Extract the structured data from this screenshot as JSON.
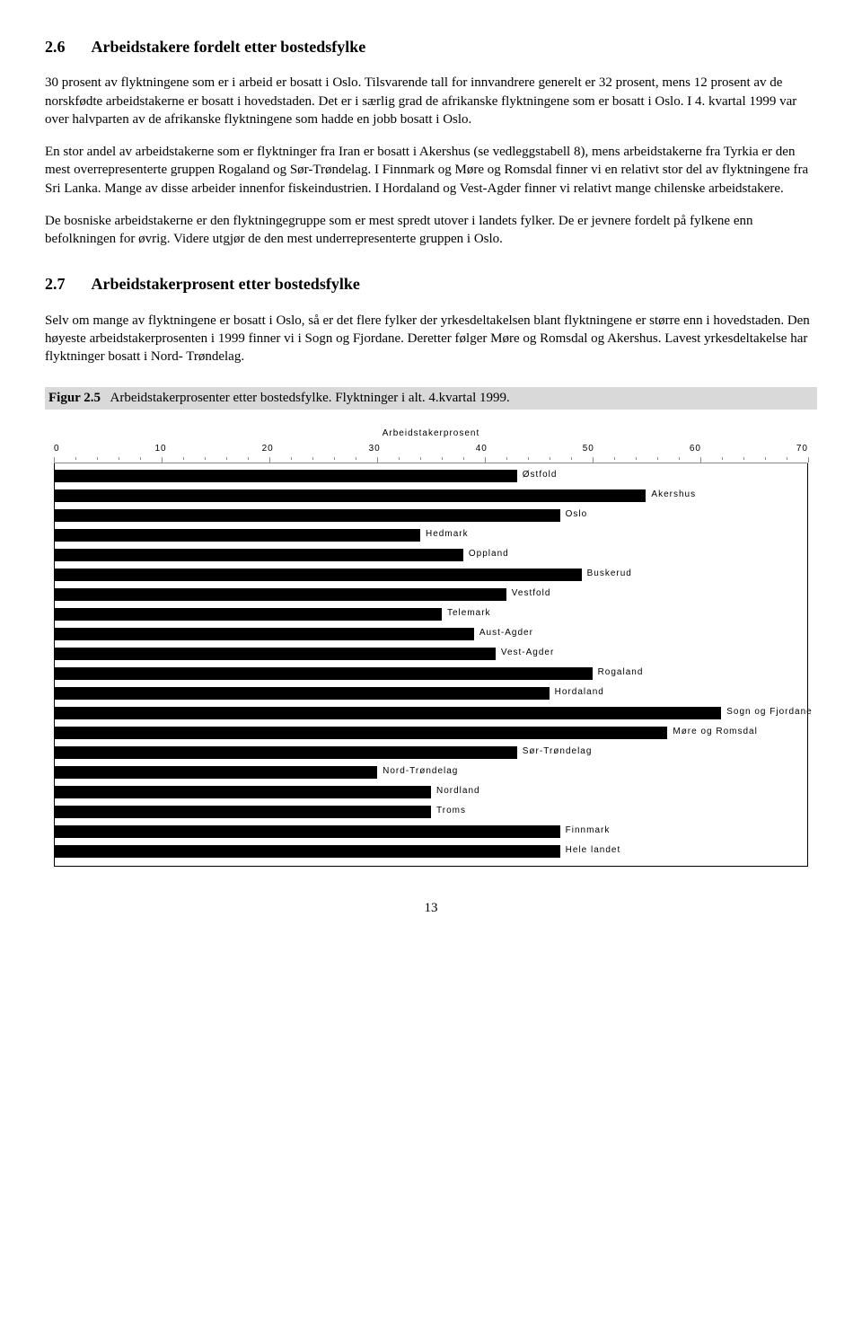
{
  "section26": {
    "num": "2.6",
    "title": "Arbeidstakere fordelt etter bostedsfylke",
    "p1": "30 prosent av flyktningene som er i arbeid er bosatt i Oslo. Tilsvarende tall for innvandrere generelt er 32 prosent, mens 12 prosent av de norskfødte arbeidstakerne er bosatt i hovedstaden. Det er i særlig grad de afrikanske flyktningene som er bosatt i Oslo. I  4. kvartal 1999 var over halvparten av de afrikanske flyktningene som hadde en jobb bosatt i Oslo.",
    "p2": "En stor andel av arbeidstakerne som er flyktninger fra Iran er bosatt i Akershus (se vedleggstabell 8), mens arbeidstakerne fra Tyrkia er den mest overrepresenterte gruppen Rogaland og Sør-Trøndelag. I Finnmark og Møre og Romsdal finner vi en relativt stor del av flyktningene fra Sri Lanka. Mange av disse arbeider innenfor fiskeindustrien. I Hordaland og Vest-Agder finner vi relativt mange chilenske arbeidstakere.",
    "p3": "De bosniske arbeidstakerne er den flyktningegruppe som er  mest spredt utover i landets fylker. De er jevnere fordelt på fylkene enn befolkningen for øvrig. Videre utgjør de den mest underrepresenterte gruppen i Oslo."
  },
  "section27": {
    "num": "2.7",
    "title": "Arbeidstakerprosent etter bostedsfylke",
    "p1": "Selv om mange av flyktningene er bosatt i Oslo, så er det flere fylker der yrkesdeltakelsen blant flyktningene er større enn i hovedstaden. Den høyeste arbeidstakerprosenten i 1999 finner vi i Sogn og Fjordane. Deretter følger Møre og Romsdal og Akershus. Lavest yrkesdeltakelse har flyktninger bosatt i Nord- Trøndelag."
  },
  "figure": {
    "prefix": "Figur 2.5",
    "caption": "Arbeidstakerprosenter etter bostedsfylke. Flyktninger i alt. 4.kvartal 1999."
  },
  "chart": {
    "type": "bar-horizontal",
    "title": "Arbeidstakerprosent",
    "xmin": 0,
    "xmax": 70,
    "xtick_step": 10,
    "xticks": [
      "0",
      "10",
      "20",
      "30",
      "40",
      "50",
      "60",
      "70"
    ],
    "bar_color": "#000000",
    "background_color": "#ffffff",
    "label_fontsize": 10,
    "bars": [
      {
        "label": "Østfold",
        "value": 43
      },
      {
        "label": "Akershus",
        "value": 55
      },
      {
        "label": "Oslo",
        "value": 47
      },
      {
        "label": "Hedmark",
        "value": 34
      },
      {
        "label": "Oppland",
        "value": 38
      },
      {
        "label": "Buskerud",
        "value": 49
      },
      {
        "label": "Vestfold",
        "value": 42
      },
      {
        "label": "Telemark",
        "value": 36
      },
      {
        "label": "Aust-Agder",
        "value": 39
      },
      {
        "label": "Vest-Agder",
        "value": 41
      },
      {
        "label": "Rogaland",
        "value": 50
      },
      {
        "label": "Hordaland",
        "value": 46
      },
      {
        "label": "Sogn og Fjordane",
        "value": 62
      },
      {
        "label": "Møre og Romsdal",
        "value": 57
      },
      {
        "label": "Sør-Trøndelag",
        "value": 43
      },
      {
        "label": "Nord-Trøndelag",
        "value": 30
      },
      {
        "label": "Nordland",
        "value": 35
      },
      {
        "label": "Troms",
        "value": 35
      },
      {
        "label": "Finnmark",
        "value": 47
      },
      {
        "label": "Hele landet",
        "value": 47
      }
    ]
  },
  "page_number": "13"
}
